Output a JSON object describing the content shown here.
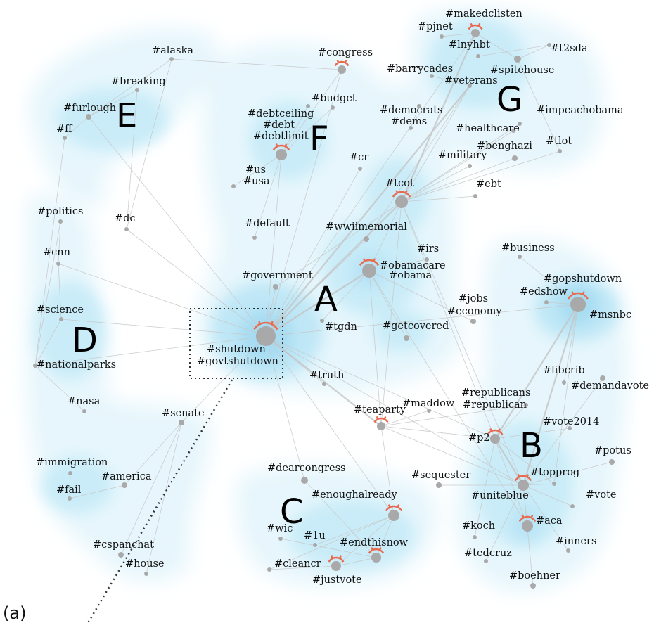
{
  "panel_label": "(a)",
  "clusters": [
    "A",
    "B",
    "C",
    "D",
    "E",
    "F",
    "G"
  ],
  "hashtags": [
    "#alaska",
    "#breaking",
    "#furlough",
    "#ff",
    "#congress",
    "#budget",
    "#debtceiling",
    "#debt",
    "#debtlimit",
    "#us",
    "#usa",
    "#cr",
    "#makedclisten",
    "#pjnet",
    "#lnyhbt",
    "#t2sda",
    "#barrycades",
    "#spitehouse",
    "#veterans",
    "#democrats",
    "#dems",
    "#impeachobama",
    "#healthcare",
    "#tlot",
    "#benghazi",
    "#military",
    "#tcot",
    "#ebt",
    "#politics",
    "#dc",
    "#default",
    "#wwiimemorial",
    "#cnn",
    "#irs",
    "#business",
    "#obamacare",
    "#obama",
    "#government",
    "#gopshutdown",
    "#edshow",
    "#jobs",
    "#economy",
    "#science",
    "#msnbc",
    "#tgdn",
    "#getcovered",
    "#shutdown",
    "#govtshutdown",
    "#nationalparks",
    "#truth",
    "#libcrib",
    "#demandavote",
    "#republicans",
    "#republican",
    "#maddow",
    "#teaparty",
    "#nasa",
    "#senate",
    "#vote2014",
    "#p2",
    "#potus",
    "#dearcongress",
    "#immigration",
    "#topprog",
    "#america",
    "#fail",
    "#sequester",
    "#enoughalready",
    "#uniteblue",
    "#vote",
    "#wic",
    "#1u",
    "#aca",
    "#koch",
    "#endthisnow",
    "#inners",
    "#cspanchat",
    "#tedcruz",
    "#house",
    "#cleancr",
    "#justvote",
    "#boehner"
  ]
}
